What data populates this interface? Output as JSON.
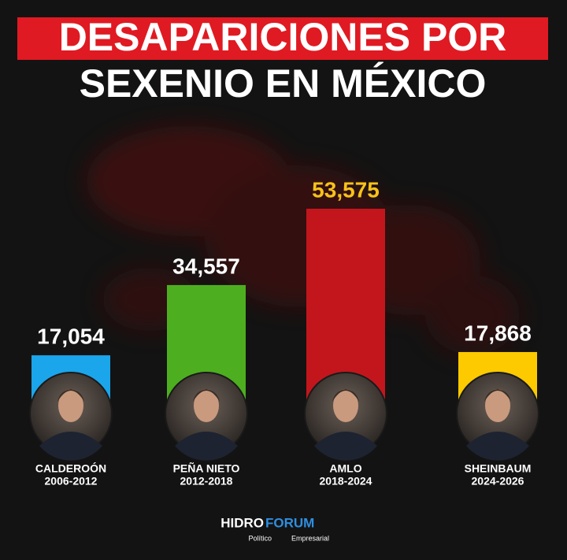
{
  "chart_data": {
    "type": "bar",
    "title": "DESAPARICIONES POR",
    "subtitle": "SEXENIO EN MÉXICO",
    "categories": [
      "CALDEROÓN",
      "PEÑA NIETO",
      "AMLO",
      "SHEINBAUM"
    ],
    "periods": [
      "2006-2012",
      "2012-2018",
      "2018-2024",
      "2024-2026"
    ],
    "values": [
      17054,
      34557,
      53575,
      17868
    ],
    "value_labels": [
      "17,054",
      "34,557",
      "53,575",
      "17,868"
    ],
    "colors": [
      "#1ba6ec",
      "#4daf1f",
      "#c3161c",
      "#fdca00"
    ],
    "value_label_colors": [
      "#ffffff",
      "#ffffff",
      "#f7c21a",
      "#ffffff"
    ],
    "brand": {
      "left": "HIDRO",
      "right": "FORUM",
      "tag_left": "Político",
      "tag_right": "Empresarial"
    }
  }
}
